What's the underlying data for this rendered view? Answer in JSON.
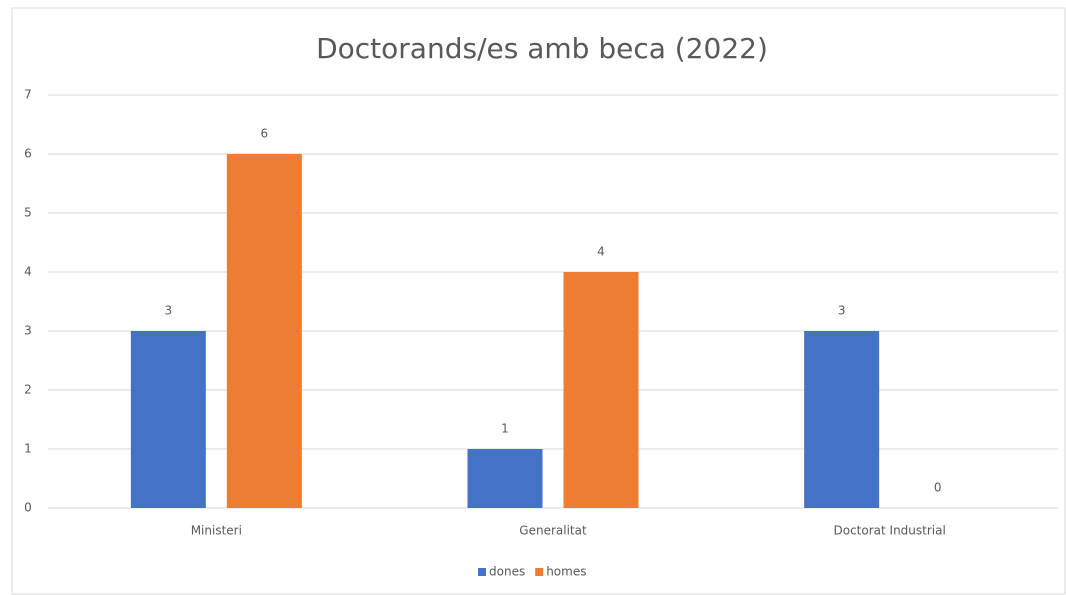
{
  "chart_data": {
    "type": "bar",
    "title": "Doctorands/es amb beca (2022)",
    "categories": [
      "Ministeri",
      "Generalitat",
      "Doctorat Industrial"
    ],
    "series": [
      {
        "name": "dones",
        "color": "#4472c4",
        "values": [
          3,
          1,
          3
        ]
      },
      {
        "name": "homes",
        "color": "#ed7d31",
        "values": [
          6,
          4,
          0
        ]
      }
    ],
    "ylim": [
      0,
      7
    ],
    "yticks": [
      0,
      1,
      2,
      3,
      4,
      5,
      6,
      7
    ],
    "grid": true,
    "legend": "bottom"
  }
}
